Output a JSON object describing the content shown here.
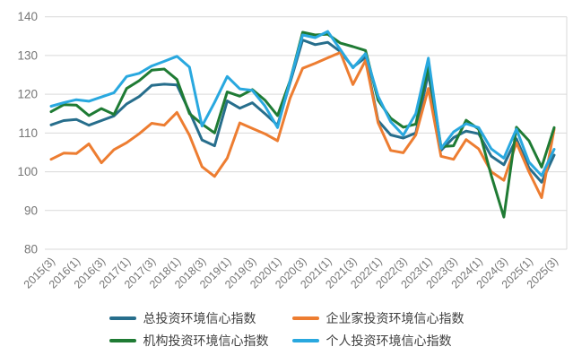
{
  "chart_data": {
    "type": "line",
    "title": "",
    "xlabel": "",
    "ylabel": "",
    "ylim": [
      80,
      140
    ],
    "yticks": [
      80,
      90,
      100,
      110,
      120,
      130,
      140
    ],
    "grid": true,
    "legend_position": "bottom",
    "x_labels": [
      "2015(3)",
      "",
      "2016(1)",
      "",
      "2016(3)",
      "",
      "2017(1)",
      "",
      "2017(3)",
      "",
      "2018(1)",
      "",
      "2018(3)",
      "",
      "2019(1)",
      "",
      "2019(3)",
      "",
      "2020(1)",
      "",
      "2020(3)",
      "",
      "2021(1)",
      "",
      "2021(3)",
      "",
      "2022(1)",
      "",
      "2022(3)",
      "",
      "2023(1)",
      "",
      "2023(3)",
      "",
      "2024(1)",
      "",
      "2024(3)",
      "",
      "2025(1)",
      "",
      "2025(3)"
    ],
    "series": [
      {
        "name": "总投资环境信心指数",
        "color": "#276E8C",
        "values": [
          112.1,
          113.2,
          113.5,
          112.0,
          113.2,
          114.4,
          117.5,
          119.4,
          122.3,
          122.6,
          122.4,
          115.5,
          108.2,
          106.7,
          118.3,
          116.4,
          117.8,
          115.0,
          112.0,
          123.0,
          134.0,
          132.8,
          133.4,
          131.0,
          127.0,
          129.5,
          113.2,
          109.5,
          108.7,
          110.0,
          125.5,
          105.5,
          108.8,
          110.5,
          109.8,
          104.0,
          101.8,
          108.5,
          101.0,
          97.3,
          104.3
        ]
      },
      {
        "name": "企业家投资环境信心指数",
        "color": "#ED7D31",
        "values": [
          103.2,
          104.8,
          104.7,
          107.2,
          102.3,
          105.7,
          107.5,
          109.8,
          112.5,
          112.0,
          115.3,
          109.4,
          101.3,
          98.8,
          103.5,
          112.6,
          111.2,
          109.8,
          108.0,
          119.0,
          126.7,
          128.0,
          129.4,
          130.8,
          122.5,
          128.7,
          112.7,
          105.5,
          104.9,
          109.5,
          121.5,
          104.0,
          103.2,
          108.3,
          105.9,
          100.0,
          97.8,
          107.5,
          100.0,
          93.3,
          111.0
        ]
      },
      {
        "name": "机构投资环境信心指数",
        "color": "#1F7B34",
        "values": [
          115.5,
          117.3,
          117.2,
          114.5,
          116.3,
          114.8,
          121.5,
          123.5,
          126.2,
          126.5,
          123.8,
          115.0,
          112.3,
          110.0,
          120.6,
          119.5,
          121.2,
          118.5,
          114.5,
          123.5,
          136.0,
          135.3,
          135.5,
          133.2,
          132.3,
          131.3,
          118.5,
          113.8,
          111.5,
          112.3,
          127.2,
          106.5,
          106.7,
          113.3,
          111.0,
          99.0,
          88.3,
          111.5,
          108.0,
          101.2,
          111.4
        ]
      },
      {
        "name": "个人投资环境信心指数",
        "color": "#29A8DF",
        "values": [
          116.9,
          117.8,
          118.6,
          118.2,
          119.3,
          120.4,
          124.6,
          125.4,
          127.3,
          128.5,
          129.8,
          127.0,
          111.8,
          117.9,
          124.6,
          121.4,
          121.0,
          117.0,
          111.4,
          123.5,
          135.3,
          134.6,
          136.2,
          131.5,
          126.8,
          130.5,
          119.5,
          112.9,
          109.4,
          115.0,
          129.3,
          106.0,
          110.3,
          112.4,
          111.4,
          105.9,
          103.5,
          111.0,
          102.5,
          99.0,
          105.8
        ]
      }
    ]
  },
  "legend": {
    "items": [
      {
        "label": "总投资环境信心指数",
        "color": "#276E8C"
      },
      {
        "label": "企业家投资环境信心指数",
        "color": "#ED7D31"
      },
      {
        "label": "机构投资环境信心指数",
        "color": "#1F7B34"
      },
      {
        "label": "个人投资环境信心指数",
        "color": "#29A8DF"
      }
    ]
  },
  "axis": {
    "tick_color": "#767676",
    "grid_color": "#D9D9D9"
  }
}
